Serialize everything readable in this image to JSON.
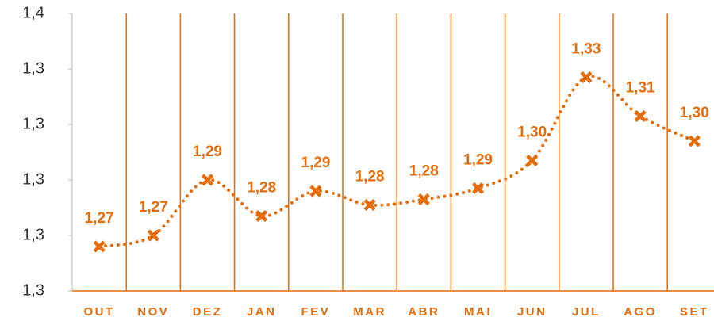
{
  "chart_data": {
    "type": "line",
    "categories": [
      "OUT",
      "NOV",
      "DEZ",
      "JAN",
      "FEV",
      "MAR",
      "ABR",
      "MAI",
      "JUN",
      "JUL",
      "AGO",
      "SET"
    ],
    "series": [
      {
        "color": "#e46c0a",
        "values": [
          1.266,
          1.27,
          1.29,
          1.277,
          1.286,
          1.281,
          1.283,
          1.287,
          1.297,
          1.327,
          1.313,
          1.304
        ],
        "value_labels": [
          "1,27",
          "1,27",
          "1,29",
          "1,28",
          "1,29",
          "1,28",
          "1,28",
          "1,29",
          "1,30",
          "1,33",
          "1,31",
          "1,30"
        ]
      }
    ],
    "ylim": [
      1.25,
      1.35
    ],
    "yticks": [
      {
        "value": 1.25,
        "label": "1,3"
      },
      {
        "value": 1.27,
        "label": "1,3"
      },
      {
        "value": 1.29,
        "label": "1,3"
      },
      {
        "value": 1.31,
        "label": "1,3"
      },
      {
        "value": 1.33,
        "label": "1,3"
      },
      {
        "value": 1.35,
        "label": "1,4"
      }
    ]
  }
}
